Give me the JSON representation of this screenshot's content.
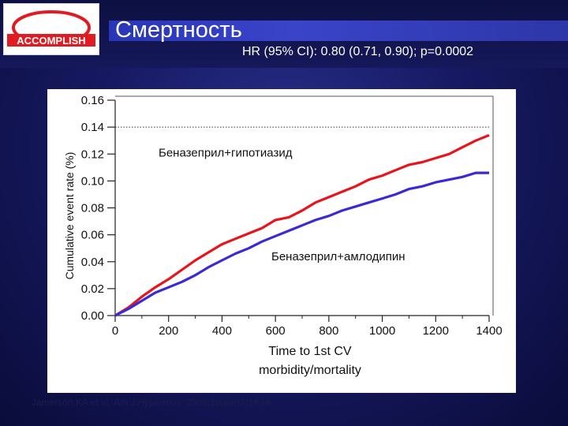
{
  "slide": {
    "logo_text": "ACCOMPLISH",
    "title": "Смертность",
    "subtitle": "HR (95% CI): 0.80 (0.71, 0.90); p=0.0002",
    "citation": {
      "authors": "Jamerson KA et al.",
      "journal": "Am J Hypertens.",
      "details": "2003;16(part2)193A."
    }
  },
  "colors": {
    "red_series": "#e8141c",
    "blue_series": "#3a2ad6",
    "background": "#171a63"
  },
  "chart_data": {
    "type": "line",
    "ylabel": "Cumulative event rate (%)",
    "xlabel_lines": [
      "Time to 1st CV",
      "morbidity/mortality"
    ],
    "xlim": [
      0,
      1400
    ],
    "ylim": [
      0,
      0.16
    ],
    "x_ticks": [
      "0",
      "200",
      "400",
      "600",
      "800",
      "1000",
      "1200",
      "1400"
    ],
    "y_ticks": [
      "0.00",
      "0.02",
      "0.04",
      "0.06",
      "0.08",
      "0.10",
      "0.12",
      "0.14",
      "0.16"
    ],
    "reference_line": 0.14,
    "annotations": [
      "Беназеприл+гипотиазид",
      "Беназеприл+амлодипин"
    ],
    "series": [
      {
        "name": "Беназеприл+гипотиазид",
        "color": "#e8141c",
        "x": [
          0,
          50,
          100,
          150,
          200,
          250,
          300,
          350,
          400,
          450,
          500,
          550,
          600,
          650,
          700,
          750,
          800,
          850,
          900,
          950,
          1000,
          1050,
          1100,
          1150,
          1200,
          1250,
          1300,
          1350,
          1400
        ],
        "y": [
          0.0,
          0.006,
          0.014,
          0.021,
          0.027,
          0.034,
          0.041,
          0.047,
          0.053,
          0.057,
          0.061,
          0.065,
          0.071,
          0.073,
          0.078,
          0.084,
          0.088,
          0.092,
          0.096,
          0.101,
          0.104,
          0.108,
          0.112,
          0.114,
          0.117,
          0.12,
          0.125,
          0.13,
          0.134
        ]
      },
      {
        "name": "Беназеприл+амлодипин",
        "color": "#3a2ad6",
        "x": [
          0,
          50,
          100,
          150,
          200,
          250,
          300,
          350,
          400,
          450,
          500,
          550,
          600,
          650,
          700,
          750,
          800,
          850,
          900,
          950,
          1000,
          1050,
          1100,
          1150,
          1200,
          1250,
          1300,
          1350,
          1400
        ],
        "y": [
          0.0,
          0.005,
          0.011,
          0.017,
          0.021,
          0.025,
          0.03,
          0.036,
          0.041,
          0.046,
          0.05,
          0.055,
          0.059,
          0.063,
          0.067,
          0.071,
          0.074,
          0.078,
          0.081,
          0.084,
          0.087,
          0.09,
          0.094,
          0.096,
          0.099,
          0.101,
          0.103,
          0.106,
          0.106
        ]
      }
    ]
  }
}
